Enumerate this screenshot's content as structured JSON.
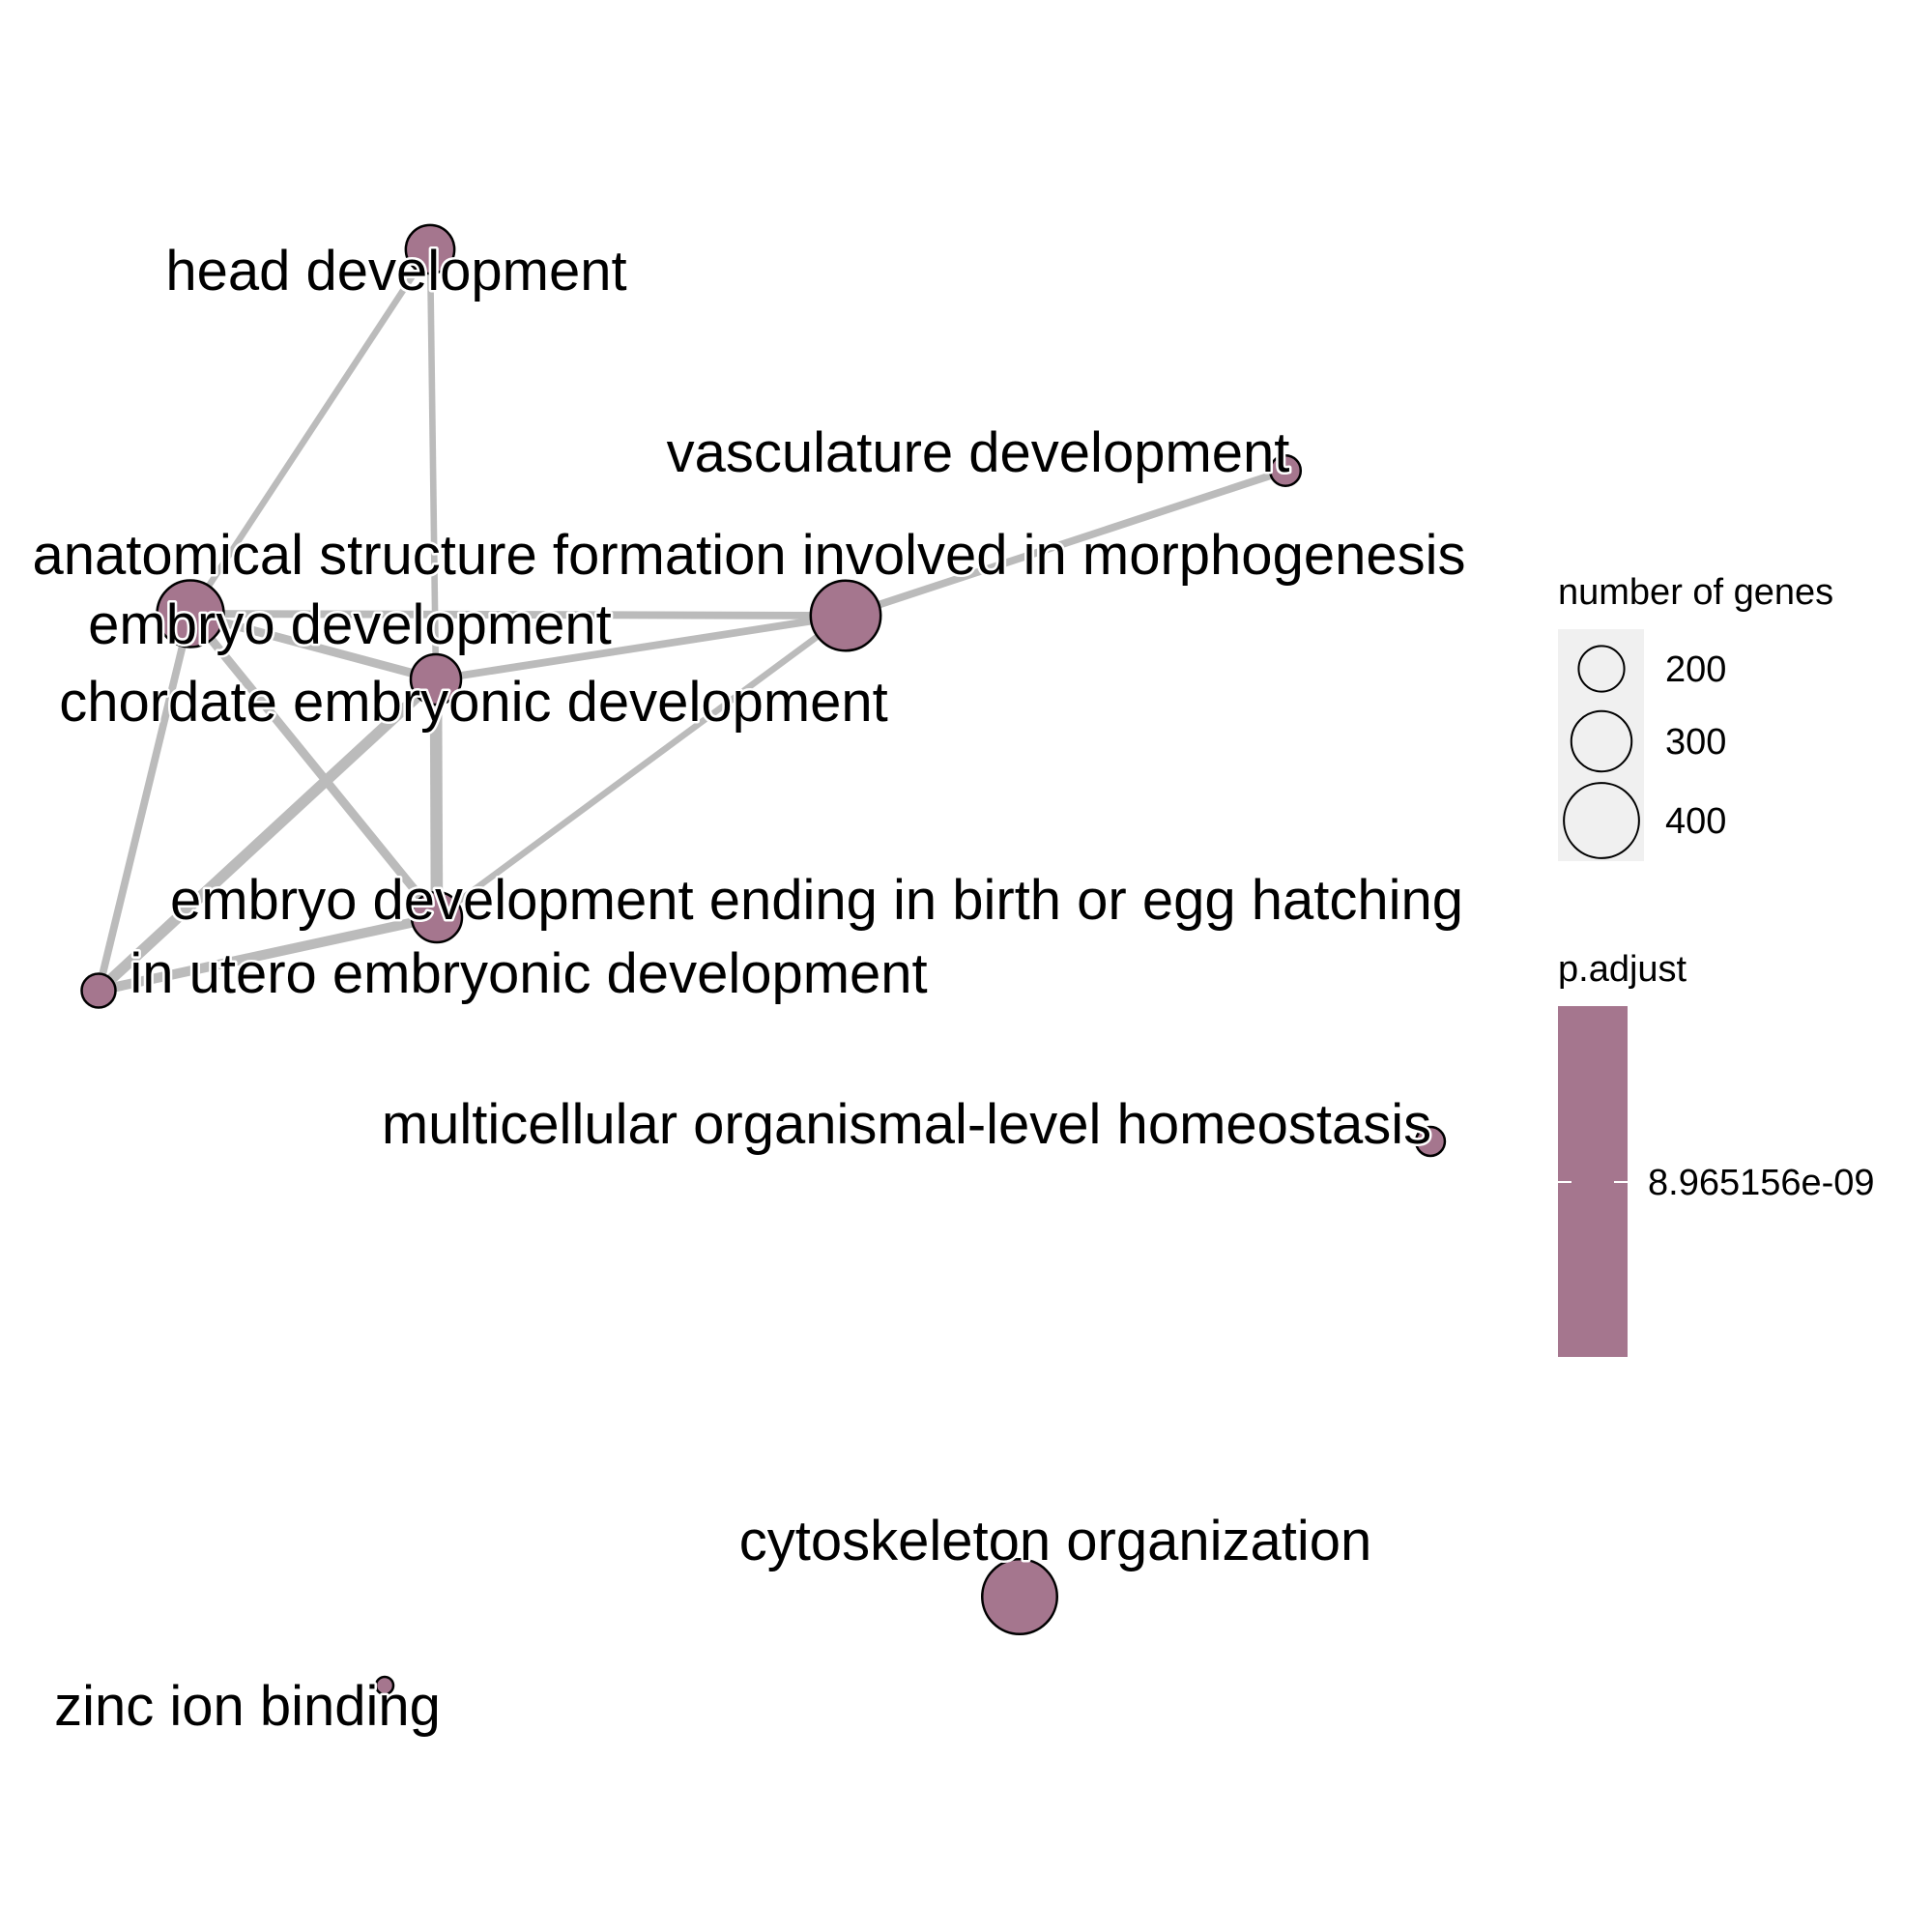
{
  "chart_data": {
    "type": "network",
    "node_color": "#a5768e",
    "edge_color": "#bbbbbb",
    "nodes": [
      {
        "id": "head",
        "label": "head development",
        "genes": 290
      },
      {
        "id": "vasc",
        "label": "vasculature development",
        "genes": 180
      },
      {
        "id": "anat",
        "label": "anatomical structure formation involved in morphogenesis",
        "genes": 420
      },
      {
        "id": "embryo",
        "label": "embryo development",
        "genes": 400
      },
      {
        "id": "chord",
        "label": "chordate embryonic development",
        "genes": 300
      },
      {
        "id": "birth",
        "label": "embryo development ending in birth or egg hatching",
        "genes": 300
      },
      {
        "id": "utero",
        "label": "in utero embryonic development",
        "genes": 200
      },
      {
        "id": "homeo",
        "label": "multicellular organismal-level homeostasis",
        "genes": 170
      },
      {
        "id": "cyto",
        "label": "cytoskeleton organization",
        "genes": 450
      },
      {
        "id": "zinc",
        "label": "zinc ion binding",
        "genes": 100
      }
    ],
    "edges": [
      {
        "source": "head",
        "target": "embryo",
        "weight": 0.3
      },
      {
        "source": "head",
        "target": "chord",
        "weight": 0.3
      },
      {
        "source": "embryo",
        "target": "anat",
        "weight": 0.4
      },
      {
        "source": "embryo",
        "target": "chord",
        "weight": 0.5
      },
      {
        "source": "embryo",
        "target": "birth",
        "weight": 0.5
      },
      {
        "source": "embryo",
        "target": "utero",
        "weight": 0.4
      },
      {
        "source": "chord",
        "target": "anat",
        "weight": 0.4
      },
      {
        "source": "chord",
        "target": "birth",
        "weight": 0.8
      },
      {
        "source": "chord",
        "target": "utero",
        "weight": 0.7
      },
      {
        "source": "anat",
        "target": "vasc",
        "weight": 0.4
      },
      {
        "source": "anat",
        "target": "birth",
        "weight": 0.3
      },
      {
        "source": "birth",
        "target": "utero",
        "weight": 0.6
      }
    ],
    "size_legend": {
      "title": "number of genes",
      "values": [
        200,
        300,
        400
      ],
      "labels": [
        "200",
        "300",
        "400"
      ]
    },
    "color_legend": {
      "title": "p.adjust",
      "labels": [
        "8.965156e-09"
      ]
    }
  }
}
